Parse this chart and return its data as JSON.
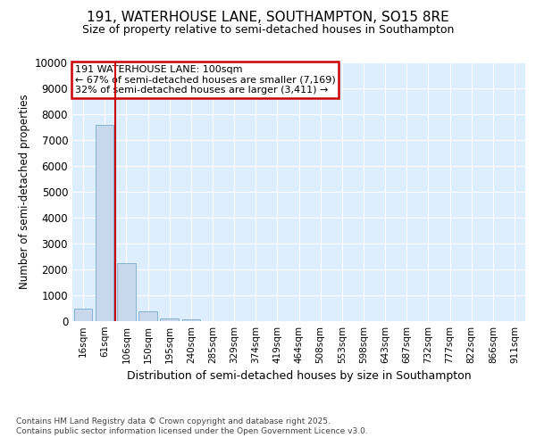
{
  "title1": "191, WATERHOUSE LANE, SOUTHAMPTON, SO15 8RE",
  "title2": "Size of property relative to semi-detached houses in Southampton",
  "xlabel": "Distribution of semi-detached houses by size in Southampton",
  "ylabel": "Number of semi-detached properties",
  "categories": [
    "16sqm",
    "61sqm",
    "106sqm",
    "150sqm",
    "195sqm",
    "240sqm",
    "285sqm",
    "329sqm",
    "374sqm",
    "419sqm",
    "464sqm",
    "508sqm",
    "553sqm",
    "598sqm",
    "643sqm",
    "687sqm",
    "732sqm",
    "777sqm",
    "822sqm",
    "866sqm",
    "911sqm"
  ],
  "values": [
    490,
    7580,
    2230,
    380,
    115,
    55,
    0,
    0,
    0,
    0,
    0,
    0,
    0,
    0,
    0,
    0,
    0,
    0,
    0,
    0,
    0
  ],
  "bar_color": "#c8d8ec",
  "bar_edge_color": "#7aabcc",
  "red_line_x": 1.5,
  "smaller_pct": "67%",
  "smaller_count": "7,169",
  "larger_pct": "32%",
  "larger_count": "3,411",
  "annotation_box_color": "#cc0000",
  "ylim": [
    0,
    10000
  ],
  "yticks": [
    0,
    1000,
    2000,
    3000,
    4000,
    5000,
    6000,
    7000,
    8000,
    9000,
    10000
  ],
  "footer": "Contains HM Land Registry data © Crown copyright and database right 2025.\nContains public sector information licensed under the Open Government Licence v3.0.",
  "bg_color": "#ffffff",
  "plot_bg_color": "#ddeeff",
  "grid_color": "#ffffff"
}
